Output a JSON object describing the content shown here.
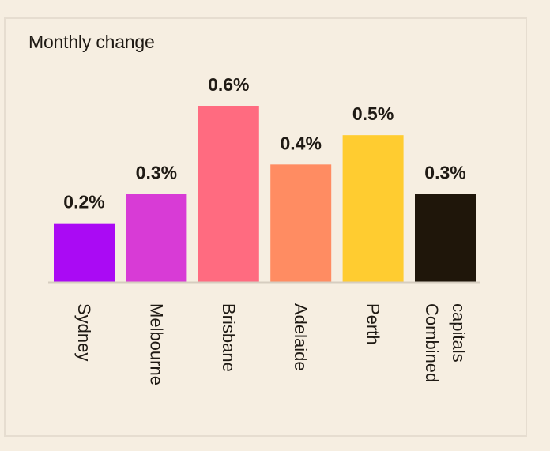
{
  "chart_data": {
    "type": "bar",
    "title": "Monthly change",
    "categories": [
      "Sydney",
      "Melbourne",
      "Brisbane",
      "Adelaide",
      "Perth",
      "Combined capitals"
    ],
    "category_lines": [
      [
        "Sydney"
      ],
      [
        "Melbourne"
      ],
      [
        "Brisbane"
      ],
      [
        "Adelaide"
      ],
      [
        "Perth"
      ],
      [
        "Combined",
        "capitals"
      ]
    ],
    "values": [
      0.2,
      0.3,
      0.6,
      0.4,
      0.5,
      0.3
    ],
    "value_labels": [
      "0.2%",
      "0.3%",
      "0.6%",
      "0.4%",
      "0.5%",
      "0.3%"
    ],
    "colors": [
      "#aa0af4",
      "#d83bd6",
      "#ff6b80",
      "#ff8c62",
      "#ffcc30",
      "#1f160a"
    ],
    "ylim": [
      0,
      0.6
    ],
    "xlabel": "",
    "ylabel": "",
    "grid": false,
    "legend": "none"
  }
}
